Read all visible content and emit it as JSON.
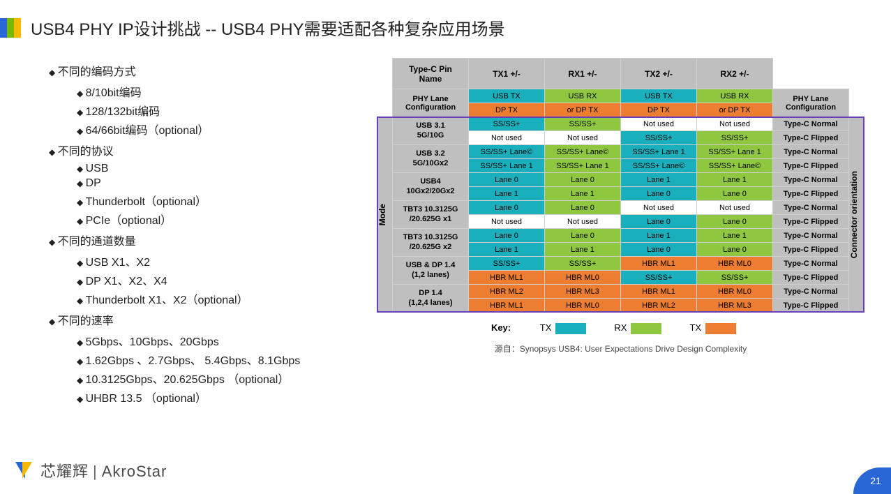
{
  "title": "USB4 PHY IP设计挑战 -- USB4 PHY需要适配各种复杂应用场景",
  "bullets": [
    {
      "t": "不同的编码方式",
      "sub": [
        "8/10bit编码",
        "128/132bit编码",
        "64/66bit编码（optional）"
      ]
    },
    {
      "t": "不同的协议",
      "sub": [
        "USB",
        "DP",
        "Thunderbolt（optional）",
        "PCIe（optional）"
      ]
    },
    {
      "t": "不同的通道数量",
      "sub": [
        "USB X1、X2",
        "DP X1、X2、X4",
        "Thunderbolt X1、X2（optional）"
      ]
    },
    {
      "t": "不同的速率",
      "sub": [
        "5Gbps、10Gbps、20Gbps",
        "1.62Gbps 、2.7Gbps、 5.4Gbps、8.1Gbps",
        "10.3125Gbps、20.625Gbps （optional）",
        "UHBR 13.5 （optional）"
      ]
    }
  ],
  "colors": {
    "aqua": "#1aafbc",
    "green": "#8fc740",
    "orange": "#ed7d31",
    "white": "#ffffff",
    "gray": "#a6a6a6",
    "hdr": "#bfbfbf",
    "purple": "#6a3fb5"
  },
  "table": {
    "header_left": "Type-C Pin\nName",
    "cols": [
      "TX1 +/-",
      "RX1 +/-",
      "TX2 +/-",
      "RX2 +/-"
    ],
    "phy_lane": "PHY Lane\nConfiguration",
    "mode": "Mode",
    "conn": "Connector orientation",
    "phy_rows": [
      [
        "USB TX",
        "USB RX",
        "USB TX",
        "USB RX"
      ],
      [
        "DP TX",
        "or DP TX",
        "DP TX",
        "or DP TX"
      ]
    ],
    "phy_colors": [
      [
        "aqua",
        "green",
        "aqua",
        "green"
      ],
      [
        "orange",
        "orange",
        "orange",
        "orange"
      ]
    ],
    "body": [
      {
        "label": "USB 3.1\n5G/10G",
        "rows": [
          {
            "c": [
              "SS/SS+",
              "SS/SS+",
              "Not used",
              "Not used"
            ],
            "col": [
              "aqua",
              "green",
              "white",
              "white"
            ],
            "r": "Type-C Normal"
          },
          {
            "c": [
              "Not used",
              "Not used",
              "SS/SS+",
              "SS/SS+"
            ],
            "col": [
              "white",
              "white",
              "aqua",
              "green"
            ],
            "r": "Type-C Flipped"
          }
        ]
      },
      {
        "label": "USB 3.2\n5G/10Gx2",
        "rows": [
          {
            "c": [
              "SS/SS+ Lane©",
              "SS/SS+ Lane©",
              "SS/SS+ Lane 1",
              "SS/SS+ Lane 1"
            ],
            "col": [
              "aqua",
              "green",
              "aqua",
              "green"
            ],
            "r": "Type-C Normal"
          },
          {
            "c": [
              "SS/SS+ Lane 1",
              "SS/SS+  Lane 1",
              "SS/SS+ Lane©",
              "SS/SS+ Lane©"
            ],
            "col": [
              "aqua",
              "green",
              "aqua",
              "green"
            ],
            "r": "Type-C Flipped"
          }
        ]
      },
      {
        "label": "USB4\n10Gx2/20Gx2",
        "rows": [
          {
            "c": [
              "Lane 0",
              "Lane 0",
              "Lane 1",
              "Lane 1"
            ],
            "col": [
              "aqua",
              "green",
              "aqua",
              "green"
            ],
            "r": "Type-C Normal"
          },
          {
            "c": [
              "Lane 1",
              "Lane 1",
              "Lane 0",
              "Lane 0"
            ],
            "col": [
              "aqua",
              "green",
              "aqua",
              "green"
            ],
            "r": "Type-C Flipped"
          }
        ]
      },
      {
        "label": "TBT3 10.3125G\n/20.625G x1",
        "rows": [
          {
            "c": [
              "Lane 0",
              "Lane 0",
              "Not used",
              "Not used"
            ],
            "col": [
              "aqua",
              "green",
              "white",
              "white"
            ],
            "r": "Type-C Normal"
          },
          {
            "c": [
              "Not used",
              "Not used",
              "Lane 0",
              "Lane 0"
            ],
            "col": [
              "white",
              "white",
              "aqua",
              "green"
            ],
            "r": "Type-C Flipped"
          }
        ]
      },
      {
        "label": "TBT3 10.3125G\n/20.625G x2",
        "rows": [
          {
            "c": [
              "Lane 0",
              "Lane 0",
              "Lane 1",
              "Lane 1"
            ],
            "col": [
              "aqua",
              "green",
              "aqua",
              "green"
            ],
            "r": "Type-C Normal"
          },
          {
            "c": [
              "Lane 1",
              "Lane 1",
              "Lane 0",
              "Lane 0"
            ],
            "col": [
              "aqua",
              "green",
              "aqua",
              "green"
            ],
            "r": "Type-C Flipped"
          }
        ]
      },
      {
        "label": "USB & DP 1.4\n(1,2 lanes)",
        "rows": [
          {
            "c": [
              "SS/SS+",
              "SS/SS+",
              "HBR ML1",
              "HBR ML0"
            ],
            "col": [
              "aqua",
              "green",
              "orange",
              "orange"
            ],
            "r": "Type-C Normal"
          },
          {
            "c": [
              "HBR ML1",
              "HBR ML0",
              "SS/SS+",
              "SS/SS+"
            ],
            "col": [
              "orange",
              "orange",
              "aqua",
              "green"
            ],
            "r": "Type-C Flipped"
          }
        ]
      },
      {
        "label": "DP 1.4\n(1,2,4 lanes)",
        "rows": [
          {
            "c": [
              "HBR ML2",
              "HBR ML3",
              "HBR ML1",
              "HBR ML0"
            ],
            "col": [
              "orange",
              "orange",
              "orange",
              "orange"
            ],
            "r": "Type-C Normal"
          },
          {
            "c": [
              "HBR ML1",
              "HBR ML0",
              "HBR ML2",
              "HBR ML3"
            ],
            "col": [
              "orange",
              "orange",
              "orange",
              "orange"
            ],
            "r": "Type-C Flipped"
          }
        ]
      }
    ]
  },
  "key": {
    "label": "Key:",
    "items": [
      {
        "t": "TX",
        "col": "aqua"
      },
      {
        "t": "RX",
        "col": "green"
      },
      {
        "t": "TX",
        "col": "orange"
      }
    ]
  },
  "source": "源自：Synopsys USB4: User Expectations Drive Design Complexity",
  "logo_cn": "芯耀辉",
  "logo_en": "AkroStar",
  "page": "21"
}
